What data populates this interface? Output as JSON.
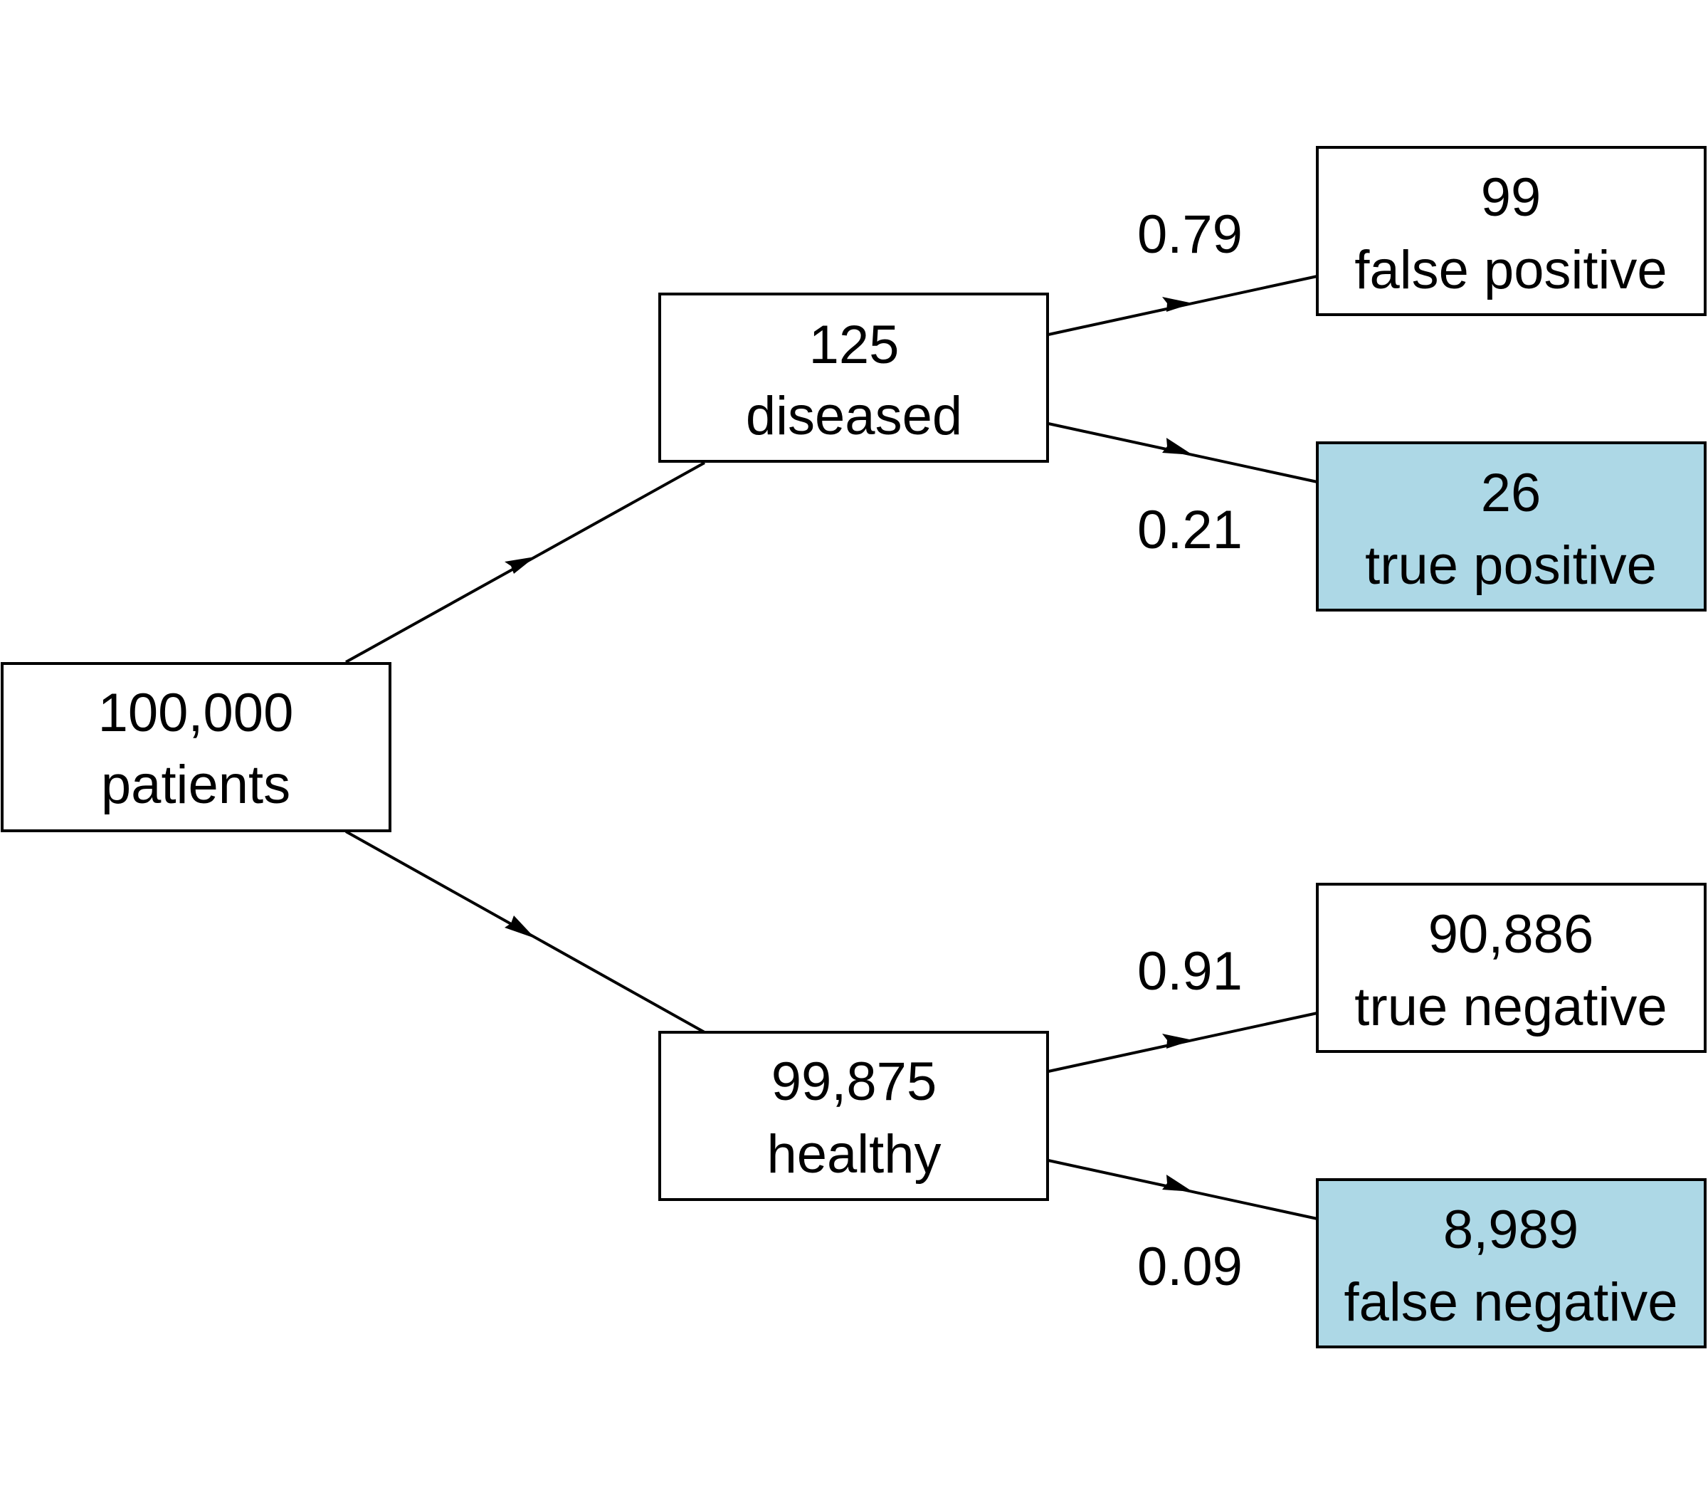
{
  "colors": {
    "default_fill": "#ffffff",
    "highlight_fill": "#add8e6",
    "stroke": "#000000"
  },
  "nodes": {
    "root": {
      "count": "100,000",
      "label": "patients"
    },
    "diseased": {
      "count": "125",
      "label": "diseased"
    },
    "healthy": {
      "count": "99,875",
      "label": "healthy"
    },
    "false_positive": {
      "count": "99",
      "label": "false positive"
    },
    "true_positive": {
      "count": "26",
      "label": "true positive"
    },
    "true_negative": {
      "count": "90,886",
      "label": "true negative"
    },
    "false_negative": {
      "count": "8,989",
      "label": "false negative"
    }
  },
  "edges": {
    "root_diseased": {
      "probability": ""
    },
    "root_healthy": {
      "probability": ""
    },
    "diseased_false_positive": {
      "probability": "0.79"
    },
    "diseased_true_positive": {
      "probability": "0.21"
    },
    "healthy_true_negative": {
      "probability": "0.91"
    },
    "healthy_false_negative": {
      "probability": "0.09"
    }
  }
}
